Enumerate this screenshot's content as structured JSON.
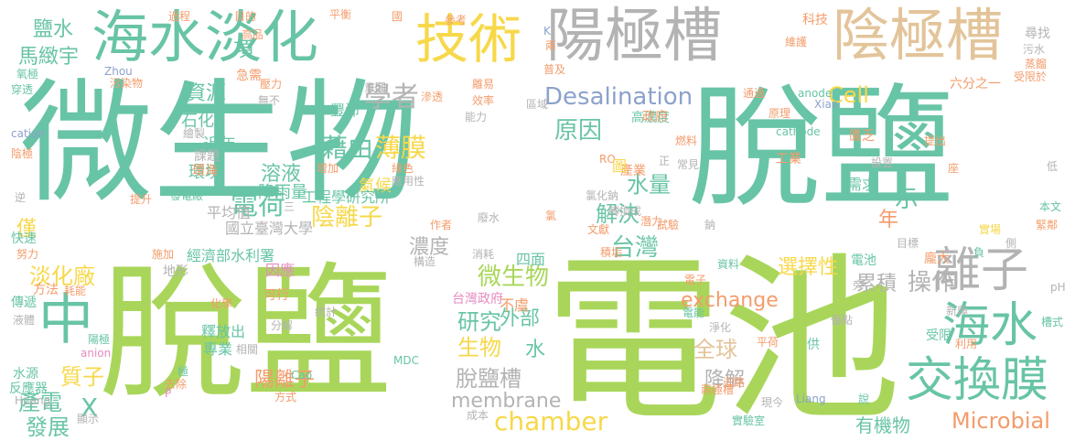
{
  "colors": {
    "teal": "#68c4a6",
    "green": "#a9d65a",
    "gray": "#b3b3b3",
    "tan": "#e3c49a",
    "yellow": "#f7d84a",
    "orange": "#f39c6b",
    "pink": "#e58bbf",
    "blue": "#8ca2cb"
  },
  "words": [
    {
      "text": "微生物",
      "color": "teal"
    },
    {
      "text": "脫鹽",
      "color": "teal"
    },
    {
      "text": "脫鹽",
      "color": "green"
    },
    {
      "text": "電池",
      "color": "green"
    },
    {
      "text": "海水淡化",
      "color": "teal"
    },
    {
      "text": "技術",
      "color": "yellow"
    },
    {
      "text": "陽極槽",
      "color": "gray"
    },
    {
      "text": "陰極槽",
      "color": "tan"
    },
    {
      "text": "交換膜",
      "color": "teal"
    },
    {
      "text": "海水",
      "color": "teal"
    },
    {
      "text": "離子",
      "color": "gray"
    },
    {
      "text": "中",
      "color": "teal"
    },
    {
      "text": "Desalination",
      "color": "blue"
    },
    {
      "text": "chamber",
      "color": "yellow"
    },
    {
      "text": "Microbial",
      "color": "orange"
    },
    {
      "text": "membrane",
      "color": "gray"
    },
    {
      "text": "學者",
      "color": "gray"
    },
    {
      "text": "電荷",
      "color": "teal"
    },
    {
      "text": "陰離子",
      "color": "yellow"
    },
    {
      "text": "藉由",
      "color": "teal"
    },
    {
      "text": "薄膜",
      "color": "yellow"
    },
    {
      "text": "原因",
      "color": "teal"
    },
    {
      "text": "台灣",
      "color": "teal"
    },
    {
      "text": "微生物",
      "color": "green"
    },
    {
      "text": "脫鹽槽",
      "color": "gray"
    },
    {
      "text": "生物",
      "color": "yellow"
    },
    {
      "text": "研究",
      "color": "teal"
    },
    {
      "text": "淡化廠",
      "color": "yellow"
    },
    {
      "text": "質子",
      "color": "yellow"
    },
    {
      "text": "產電",
      "color": "teal"
    },
    {
      "text": "發展",
      "color": "teal"
    },
    {
      "text": "操作",
      "color": "gray"
    },
    {
      "text": "Cell",
      "color": "yellow"
    },
    {
      "text": "exchange",
      "color": "orange"
    },
    {
      "text": "全球",
      "color": "tan"
    },
    {
      "text": "鹽水",
      "color": "teal"
    },
    {
      "text": "馬緻宇",
      "color": "teal"
    },
    {
      "text": "資源",
      "color": "teal"
    },
    {
      "text": "項",
      "color": "teal"
    },
    {
      "text": "溶液",
      "color": "teal"
    },
    {
      "text": "水量",
      "color": "teal"
    },
    {
      "text": "解決",
      "color": "teal"
    },
    {
      "text": "示",
      "color": "teal"
    },
    {
      "text": "年",
      "color": "orange"
    },
    {
      "text": "濃度",
      "color": "gray"
    },
    {
      "text": "選擇性",
      "color": "yellow"
    },
    {
      "text": "累積",
      "color": "gray"
    },
    {
      "text": "降解",
      "color": "gray"
    },
    {
      "text": "有機物",
      "color": "teal"
    },
    {
      "text": "外部",
      "color": "teal"
    },
    {
      "text": "水",
      "color": "teal"
    },
    {
      "text": "僅",
      "color": "yellow"
    },
    {
      "text": "X",
      "color": "teal"
    },
    {
      "text": "陽離子",
      "color": "orange"
    },
    {
      "text": "石化",
      "color": "teal"
    },
    {
      "text": "近年",
      "color": "teal"
    },
    {
      "text": "環境",
      "color": "teal"
    },
    {
      "text": "降雨量",
      "color": "teal"
    },
    {
      "text": "氣候",
      "color": "yellow"
    },
    {
      "text": "工程學研究所",
      "color": "teal"
    },
    {
      "text": "國立臺灣大學",
      "color": "gray"
    },
    {
      "text": "平均值",
      "color": "gray"
    },
    {
      "text": "發電廠",
      "color": "teal"
    },
    {
      "text": "經濟部水利署",
      "color": "teal"
    },
    {
      "text": "因應",
      "color": "pink"
    },
    {
      "text": "台灣政府",
      "color": "pink"
    },
    {
      "text": "不虞",
      "color": "orange"
    },
    {
      "text": "四面",
      "color": "teal"
    },
    {
      "text": "釋放出",
      "color": "teal"
    },
    {
      "text": "專業",
      "color": "teal"
    },
    {
      "text": "目的",
      "color": "orange"
    },
    {
      "text": "過程",
      "color": "orange"
    },
    {
      "text": "平衡",
      "color": "orange"
    },
    {
      "text": "參考",
      "color": "orange"
    },
    {
      "text": "科技",
      "color": "orange"
    },
    {
      "text": "尋找",
      "color": "gray"
    },
    {
      "text": "急需",
      "color": "orange"
    },
    {
      "text": "高品",
      "color": "orange"
    },
    {
      "text": "壓力",
      "color": "orange"
    },
    {
      "text": "無不",
      "color": "gray"
    },
    {
      "text": "豐沛",
      "color": "teal"
    },
    {
      "text": "區域",
      "color": "gray"
    },
    {
      "text": "高濃度",
      "color": "teal"
    },
    {
      "text": "政府",
      "color": "orange"
    },
    {
      "text": "匱乏",
      "color": "orange"
    },
    {
      "text": "工業",
      "color": "orange"
    },
    {
      "text": "產業",
      "color": "orange"
    },
    {
      "text": "需求",
      "color": "teal"
    },
    {
      "text": "六分之一",
      "color": "orange"
    },
    {
      "text": "受限於",
      "color": "orange"
    },
    {
      "text": "通過",
      "color": "orange"
    },
    {
      "text": "原理",
      "color": "orange"
    },
    {
      "text": "提出",
      "color": "orange"
    },
    {
      "text": "設置",
      "color": "gray"
    },
    {
      "text": "燃料",
      "color": "orange"
    },
    {
      "text": "轉換成",
      "color": "gray"
    },
    {
      "text": "氯化鈉",
      "color": "gray"
    },
    {
      "text": "文獻",
      "color": "orange"
    },
    {
      "text": "能力",
      "color": "gray"
    },
    {
      "text": "效率",
      "color": "orange"
    },
    {
      "text": "滲透",
      "color": "orange"
    },
    {
      "text": "意圖",
      "color": "gray"
    },
    {
      "text": "污染物",
      "color": "orange"
    },
    {
      "text": "穿透",
      "color": "teal"
    },
    {
      "text": "氧極",
      "color": "teal"
    },
    {
      "text": "繪製",
      "color": "gray"
    },
    {
      "text": "課題",
      "color": "gray"
    },
    {
      "text": "環海",
      "color": "orange"
    },
    {
      "text": "提升",
      "color": "orange"
    },
    {
      "text": "增加",
      "color": "orange"
    },
    {
      "text": "綠色",
      "color": "orange"
    },
    {
      "text": "應用性",
      "color": "gray"
    },
    {
      "text": "廢水",
      "color": "gray"
    },
    {
      "text": "試驗",
      "color": "orange"
    },
    {
      "text": "積垢",
      "color": "orange"
    },
    {
      "text": "消耗",
      "color": "gray"
    },
    {
      "text": "構造",
      "color": "gray"
    },
    {
      "text": "地形",
      "color": "gray"
    },
    {
      "text": "可行",
      "color": "orange"
    },
    {
      "text": "方法",
      "color": "orange"
    },
    {
      "text": "耗能",
      "color": "orange"
    },
    {
      "text": "傳遞",
      "color": "teal"
    },
    {
      "text": "液體",
      "color": "gray"
    },
    {
      "text": "陽極",
      "color": "teal"
    },
    {
      "text": "anion",
      "color": "pink"
    },
    {
      "text": "水源",
      "color": "teal"
    },
    {
      "text": "反應器",
      "color": "teal"
    },
    {
      "text": "Huang",
      "color": "gray"
    },
    {
      "text": "顯示",
      "color": "gray"
    },
    {
      "text": "去除",
      "color": "orange"
    },
    {
      "text": "方式",
      "color": "orange"
    },
    {
      "text": "Cao",
      "color": "teal"
    },
    {
      "text": "MDC",
      "color": "teal"
    },
    {
      "text": "統計",
      "color": "gray"
    },
    {
      "text": "分解",
      "color": "gray"
    },
    {
      "text": "相關",
      "color": "gray"
    },
    {
      "text": "化學",
      "color": "orange"
    },
    {
      "text": "成本",
      "color": "gray"
    },
    {
      "text": "電能",
      "color": "teal"
    },
    {
      "text": "淨化",
      "color": "gray"
    },
    {
      "text": "電子",
      "color": "orange"
    },
    {
      "text": "資料",
      "color": "teal"
    },
    {
      "text": "電池",
      "color": "teal"
    },
    {
      "text": "平荷",
      "color": "orange"
    },
    {
      "text": "迴路",
      "color": "orange"
    },
    {
      "text": "兩極槽",
      "color": "orange"
    },
    {
      "text": "現今",
      "color": "gray"
    },
    {
      "text": "Liang",
      "color": "blue"
    },
    {
      "text": "實驗室",
      "color": "teal"
    },
    {
      "text": "說",
      "color": "teal"
    },
    {
      "text": "優點",
      "color": "gray"
    },
    {
      "text": "供",
      "color": "teal"
    },
    {
      "text": "受限",
      "color": "teal"
    },
    {
      "text": "利用",
      "color": "orange"
    },
    {
      "text": "新興",
      "color": "gray"
    },
    {
      "text": "槽式",
      "color": "teal"
    },
    {
      "text": "pH",
      "color": "gray"
    },
    {
      "text": "龐大",
      "color": "orange"
    },
    {
      "text": "目標",
      "color": "gray"
    },
    {
      "text": "實場",
      "color": "yellow"
    },
    {
      "text": "緊鄰",
      "color": "orange"
    },
    {
      "text": "本文",
      "color": "teal"
    },
    {
      "text": "低",
      "color": "gray"
    },
    {
      "text": "Zhou",
      "color": "blue"
    },
    {
      "text": "Xiao",
      "color": "blue"
    },
    {
      "text": "cation",
      "color": "blue"
    },
    {
      "text": "anode",
      "color": "teal"
    },
    {
      "text": "cathode",
      "color": "teal"
    },
    {
      "text": "RO",
      "color": "orange"
    },
    {
      "text": "P",
      "color": "pink"
    },
    {
      "text": "K",
      "color": "blue"
    },
    {
      "text": "國",
      "color": "orange"
    },
    {
      "text": "鈉",
      "color": "gray"
    },
    {
      "text": "氯",
      "color": "orange"
    },
    {
      "text": "負",
      "color": "teal"
    },
    {
      "text": "旁",
      "color": "gray"
    },
    {
      "text": "座",
      "color": "orange"
    },
    {
      "text": "普及",
      "color": "orange"
    },
    {
      "text": "維護",
      "color": "orange"
    },
    {
      "text": "蒸餾",
      "color": "orange"
    },
    {
      "text": "污水",
      "color": "gray"
    },
    {
      "text": "逆",
      "color": "gray"
    },
    {
      "text": "快速",
      "color": "teal"
    },
    {
      "text": "努力",
      "color": "orange"
    },
    {
      "text": "施加",
      "color": "orange"
    },
    {
      "text": "作者",
      "color": "orange"
    },
    {
      "text": "潛力",
      "color": "orange"
    },
    {
      "text": "常見",
      "color": "gray"
    },
    {
      "text": "圖",
      "color": "yellow"
    },
    {
      "text": "正",
      "color": "gray"
    },
    {
      "text": "離易",
      "color": "orange"
    },
    {
      "text": "側",
      "color": "gray"
    },
    {
      "text": "三",
      "color": "gray"
    },
    {
      "text": "極",
      "color": "teal"
    },
    {
      "text": "陰極",
      "color": "orange"
    },
    {
      "text": "兩",
      "color": "orange"
    }
  ]
}
